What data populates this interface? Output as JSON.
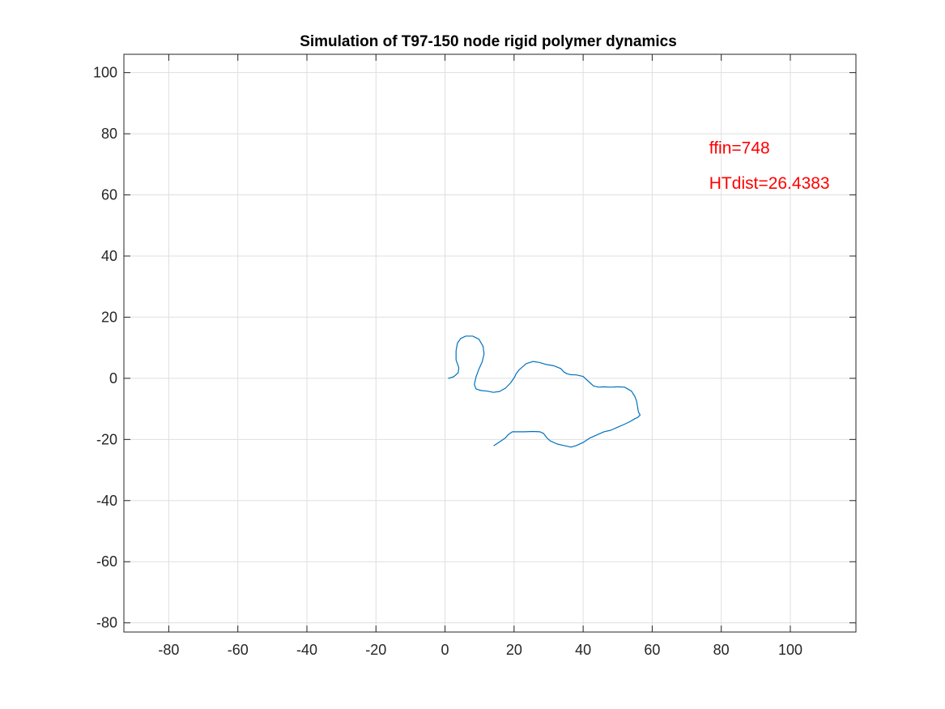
{
  "chart_data": {
    "type": "line",
    "title": "Simulation of T97-150 node rigid polymer dynamics",
    "xlabel": "",
    "ylabel": "",
    "xlim": [
      -93,
      119
    ],
    "ylim": [
      -83,
      106
    ],
    "xticks": [
      -80,
      -60,
      -40,
      -20,
      0,
      20,
      40,
      60,
      80,
      100
    ],
    "yticks": [
      -80,
      -60,
      -40,
      -20,
      0,
      20,
      40,
      60,
      80,
      100
    ],
    "grid": true,
    "series": [
      {
        "name": "",
        "color": "#0072bd",
        "x": [
          1,
          2.5,
          3.8,
          4,
          3.2,
          3.2,
          3.6,
          4.5,
          6,
          8,
          9.8,
          11,
          11.3,
          10.8,
          9.8,
          9,
          8.5,
          9,
          10.5,
          12.2,
          14,
          15.8,
          17.5,
          19,
          20.2,
          20.6,
          21.5,
          23.5,
          25.5,
          27.3,
          29.4,
          31.5,
          33.5,
          34.5,
          35.3,
          36.3,
          38,
          40,
          42,
          43,
          44.5,
          46,
          48,
          50,
          52,
          54,
          55,
          55.5,
          55.7,
          56,
          56.5,
          55.8,
          55,
          53.5,
          52,
          50,
          48,
          46,
          44,
          42,
          40,
          38,
          36.5,
          34.5,
          32.5,
          30.5,
          29.5,
          28.5,
          27.5,
          25.5,
          23,
          21,
          19.5,
          18.2,
          17.5,
          16.2,
          14.2
        ],
        "y": [
          0,
          0.5,
          1.8,
          3.5,
          6,
          9,
          11.5,
          13,
          13.8,
          13.8,
          12.8,
          10.5,
          8,
          5.5,
          3,
          0.5,
          -2,
          -3.5,
          -4,
          -4.2,
          -4.6,
          -4.3,
          -3.2,
          -1.5,
          0.5,
          1.5,
          2.8,
          4.8,
          5.5,
          5.2,
          4.5,
          4.1,
          3.2,
          2,
          1.5,
          1.2,
          1.1,
          0.6,
          -1.5,
          -2.5,
          -2.9,
          -2.8,
          -2.9,
          -2.8,
          -2.9,
          -4.2,
          -6,
          -7.5,
          -9,
          -11,
          -12,
          -12.8,
          -13.2,
          -14.2,
          -15,
          -16,
          -17,
          -17.5,
          -18.5,
          -19.5,
          -21,
          -22,
          -22.5,
          -22,
          -21.5,
          -20.5,
          -19.5,
          -18,
          -17.5,
          -17.4,
          -17.5,
          -17.5,
          -17.5,
          -18.5,
          -19.5,
          -20.5,
          -22
        ]
      }
    ],
    "annotations": [
      {
        "text": "ffin=748",
        "x": 76.5,
        "y": 73.5,
        "color": "#ff0000"
      },
      {
        "text": "HTdist=26.4383",
        "x": 76.5,
        "y": 62,
        "color": "#ff0000"
      }
    ],
    "colors": {
      "axis": "#262626",
      "grid": "#dfdfdf",
      "background": "#ffffff"
    }
  }
}
